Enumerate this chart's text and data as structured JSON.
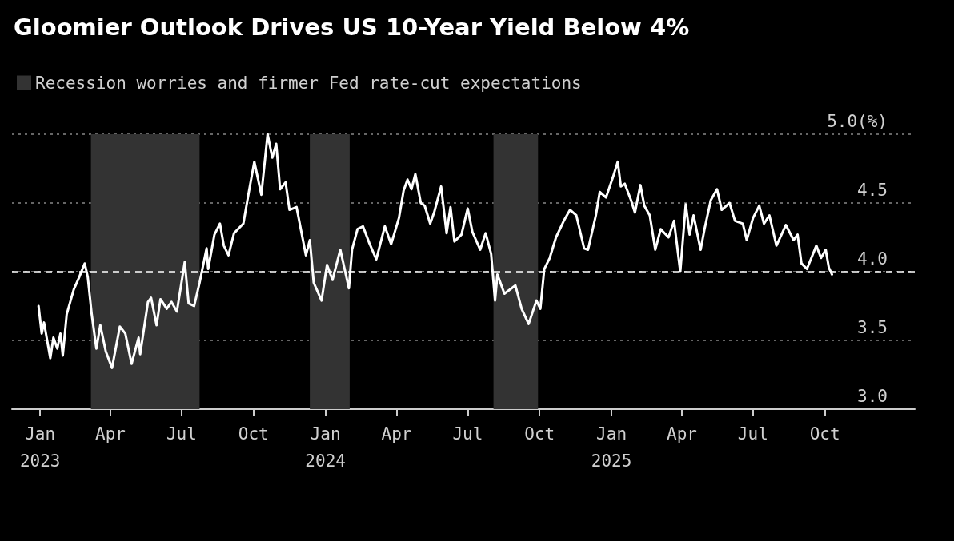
{
  "chart_data": {
    "type": "line",
    "title": "Gloomier Outlook Drives US 10-Year Yield Below 4%",
    "x": [
      "2022-12-30",
      "2023-01-03",
      "2023-01-06",
      "2023-01-14",
      "2023-01-18",
      "2023-01-23",
      "2023-01-27",
      "2023-01-30",
      "2023-02-04",
      "2023-02-13",
      "2023-02-20",
      "2023-02-27",
      "2023-03-03",
      "2023-03-08",
      "2023-03-14",
      "2023-03-19",
      "2023-03-26",
      "2023-04-03",
      "2023-04-13",
      "2023-04-20",
      "2023-04-28",
      "2023-05-07",
      "2023-05-09",
      "2023-05-19",
      "2023-05-23",
      "2023-05-30",
      "2023-06-04",
      "2023-06-12",
      "2023-06-18",
      "2023-06-25",
      "2023-07-05",
      "2023-07-10",
      "2023-07-17",
      "2023-07-24",
      "2023-08-02",
      "2023-08-04",
      "2023-08-12",
      "2023-08-19",
      "2023-08-24",
      "2023-08-30",
      "2023-09-06",
      "2023-09-18",
      "2023-09-25",
      "2023-10-02",
      "2023-10-11",
      "2023-10-19",
      "2023-10-25",
      "2023-10-30",
      "2023-11-04",
      "2023-11-11",
      "2023-11-16",
      "2023-11-25",
      "2023-12-07",
      "2023-12-12",
      "2023-12-17",
      "2023-12-27",
      "2024-01-03",
      "2024-01-10",
      "2024-01-20",
      "2024-01-31",
      "2024-02-04",
      "2024-02-11",
      "2024-02-18",
      "2024-02-26",
      "2024-03-06",
      "2024-03-17",
      "2024-03-25",
      "2024-04-04",
      "2024-04-10",
      "2024-04-15",
      "2024-04-20",
      "2024-04-25",
      "2024-05-02",
      "2024-05-07",
      "2024-05-14",
      "2024-05-19",
      "2024-05-28",
      "2024-06-04",
      "2024-06-09",
      "2024-06-14",
      "2024-06-23",
      "2024-07-01",
      "2024-07-07",
      "2024-07-17",
      "2024-07-24",
      "2024-07-31",
      "2024-08-05",
      "2024-08-08",
      "2024-08-17",
      "2024-08-31",
      "2024-09-08",
      "2024-09-17",
      "2024-09-27",
      "2024-10-02",
      "2024-10-07",
      "2024-10-14",
      "2024-10-22",
      "2024-11-01",
      "2024-11-09",
      "2024-11-17",
      "2024-11-27",
      "2024-12-02",
      "2024-12-12",
      "2024-12-17",
      "2024-12-25",
      "2025-01-03",
      "2025-01-09",
      "2025-01-13",
      "2025-01-18",
      "2025-01-26",
      "2025-01-31",
      "2025-02-07",
      "2025-02-12",
      "2025-02-19",
      "2025-02-26",
      "2025-03-05",
      "2025-03-15",
      "2025-03-22",
      "2025-03-30",
      "2025-04-06",
      "2025-04-11",
      "2025-04-16",
      "2025-04-25",
      "2025-04-30",
      "2025-05-08",
      "2025-05-16",
      "2025-05-22",
      "2025-06-01",
      "2025-06-08",
      "2025-06-18",
      "2025-06-23",
      "2025-07-01",
      "2025-07-09",
      "2025-07-15",
      "2025-07-22",
      "2025-07-31",
      "2025-08-12",
      "2025-08-22",
      "2025-08-27",
      "2025-09-01",
      "2025-09-08",
      "2025-09-20",
      "2025-09-26",
      "2025-10-02",
      "2025-10-06",
      "2025-10-10"
    ],
    "series": [
      {
        "color": "#ffffff",
        "values": [
          3.75,
          3.55,
          3.63,
          3.37,
          3.52,
          3.44,
          3.55,
          3.39,
          3.69,
          3.87,
          3.96,
          4.06,
          3.96,
          3.69,
          3.44,
          3.61,
          3.42,
          3.3,
          3.6,
          3.55,
          3.33,
          3.52,
          3.4,
          3.78,
          3.81,
          3.61,
          3.8,
          3.73,
          3.78,
          3.71,
          4.07,
          3.77,
          3.75,
          3.92,
          4.17,
          4.02,
          4.27,
          4.35,
          4.19,
          4.12,
          4.28,
          4.35,
          4.58,
          4.8,
          4.56,
          5.0,
          4.83,
          4.93,
          4.6,
          4.65,
          4.45,
          4.47,
          4.12,
          4.23,
          3.92,
          3.79,
          4.05,
          3.94,
          4.16,
          3.88,
          4.16,
          4.31,
          4.33,
          4.21,
          4.09,
          4.33,
          4.2,
          4.39,
          4.59,
          4.67,
          4.6,
          4.71,
          4.5,
          4.48,
          4.35,
          4.43,
          4.62,
          4.28,
          4.47,
          4.22,
          4.27,
          4.46,
          4.29,
          4.16,
          4.28,
          4.13,
          3.79,
          3.98,
          3.84,
          3.9,
          3.73,
          3.62,
          3.79,
          3.73,
          4.02,
          4.1,
          4.25,
          4.37,
          4.45,
          4.41,
          4.17,
          4.16,
          4.41,
          4.58,
          4.54,
          4.69,
          4.8,
          4.62,
          4.64,
          4.52,
          4.43,
          4.63,
          4.48,
          4.41,
          4.16,
          4.31,
          4.25,
          4.37,
          4.0,
          4.49,
          4.27,
          4.41,
          4.16,
          4.31,
          4.52,
          4.6,
          4.45,
          4.5,
          4.37,
          4.35,
          4.23,
          4.39,
          4.48,
          4.35,
          4.41,
          4.19,
          4.34,
          4.23,
          4.27,
          4.06,
          4.02,
          4.19,
          4.1,
          4.16,
          4.03,
          3.98
        ]
      }
    ],
    "xlim": [
      "2022-11-26",
      "2026-01-24"
    ],
    "xticks": [
      {
        "value": "2023-01-01",
        "label": "Jan\n2023"
      },
      {
        "value": "2023-04-01",
        "label": "Apr"
      },
      {
        "value": "2023-07-01",
        "label": "Jul"
      },
      {
        "value": "2023-10-01",
        "label": "Oct"
      },
      {
        "value": "2024-01-01",
        "label": "Jan\n2024"
      },
      {
        "value": "2024-04-01",
        "label": "Apr"
      },
      {
        "value": "2024-07-01",
        "label": "Jul"
      },
      {
        "value": "2024-10-01",
        "label": "Oct"
      },
      {
        "value": "2025-01-01",
        "label": "Jan\n2025"
      },
      {
        "value": "2025-04-01",
        "label": "Apr"
      },
      {
        "value": "2025-07-01",
        "label": "Jul"
      },
      {
        "value": "2025-10-01",
        "label": "Oct"
      }
    ],
    "ylim": [
      3.0,
      5.0
    ],
    "yticks": [
      {
        "value": 3.0,
        "label": "3.0"
      },
      {
        "value": 3.5,
        "label": "3.5"
      },
      {
        "value": 4.0,
        "label": "4.0"
      },
      {
        "value": 4.5,
        "label": "4.5"
      },
      {
        "value": 5.0,
        "label": "5.0(%)"
      }
    ],
    "grid": "y",
    "line_style": "solid",
    "marker": "none",
    "legend": "top left",
    "ref_lines": [
      {
        "axis": "y",
        "value": 4.0,
        "color": "#ffffff",
        "line_style": "dashed"
      }
    ],
    "bands": [
      {
        "axis": "x",
        "from": "2023-03-07",
        "to": "2023-07-24",
        "label": "Recession worries and firmer Fed rate-cut expectations",
        "color": "#333333"
      },
      {
        "axis": "x",
        "from": "2023-12-12",
        "to": "2024-02-01",
        "color": "#333333"
      },
      {
        "axis": "x",
        "from": "2024-08-03",
        "to": "2024-09-29",
        "color": "#333333"
      }
    ]
  }
}
